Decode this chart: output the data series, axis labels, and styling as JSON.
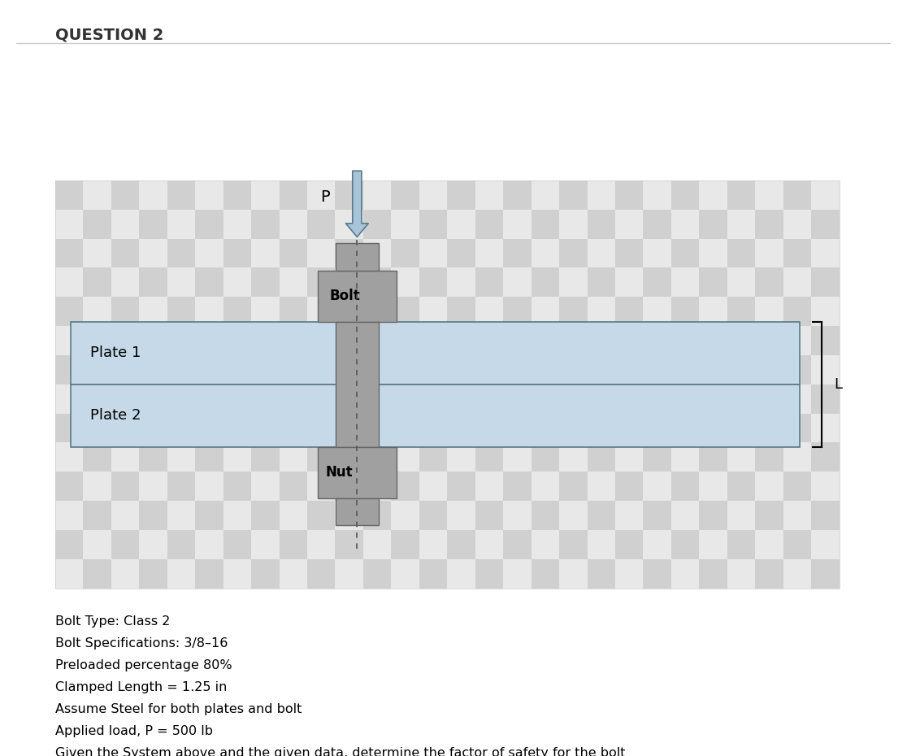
{
  "title": "QUESTION 2",
  "background_color": "#ffffff",
  "checkerboard_color": "#d8d8d8",
  "plate_color": "#c5d9e8",
  "plate_border_color": "#5a7a8a",
  "bolt_color": "#a0a0a0",
  "bolt_border_color": "#666666",
  "arrow_color": "#a8c4d8",
  "arrow_border_color": "#5a7a8a",
  "dashed_line_color": "#555555",
  "plate1_label": "Plate 1",
  "plate2_label": "Plate 2",
  "bolt_label": "Bolt",
  "nut_label": "Nut",
  "force_label": "P",
  "dim_label": "L",
  "text_lines": [
    "Bolt Type: Class 2",
    "Bolt Specifications: 3/8–16",
    "Preloaded percentage 80%",
    "Clamped Length = 1.25 in",
    "Assume Steel for both plates and bolt",
    "Applied load, P = 500 lb",
    "Given the System above and the given data, determine the factor of safety for the bolt"
  ],
  "figure_width": 11.16,
  "figure_height": 9.3
}
